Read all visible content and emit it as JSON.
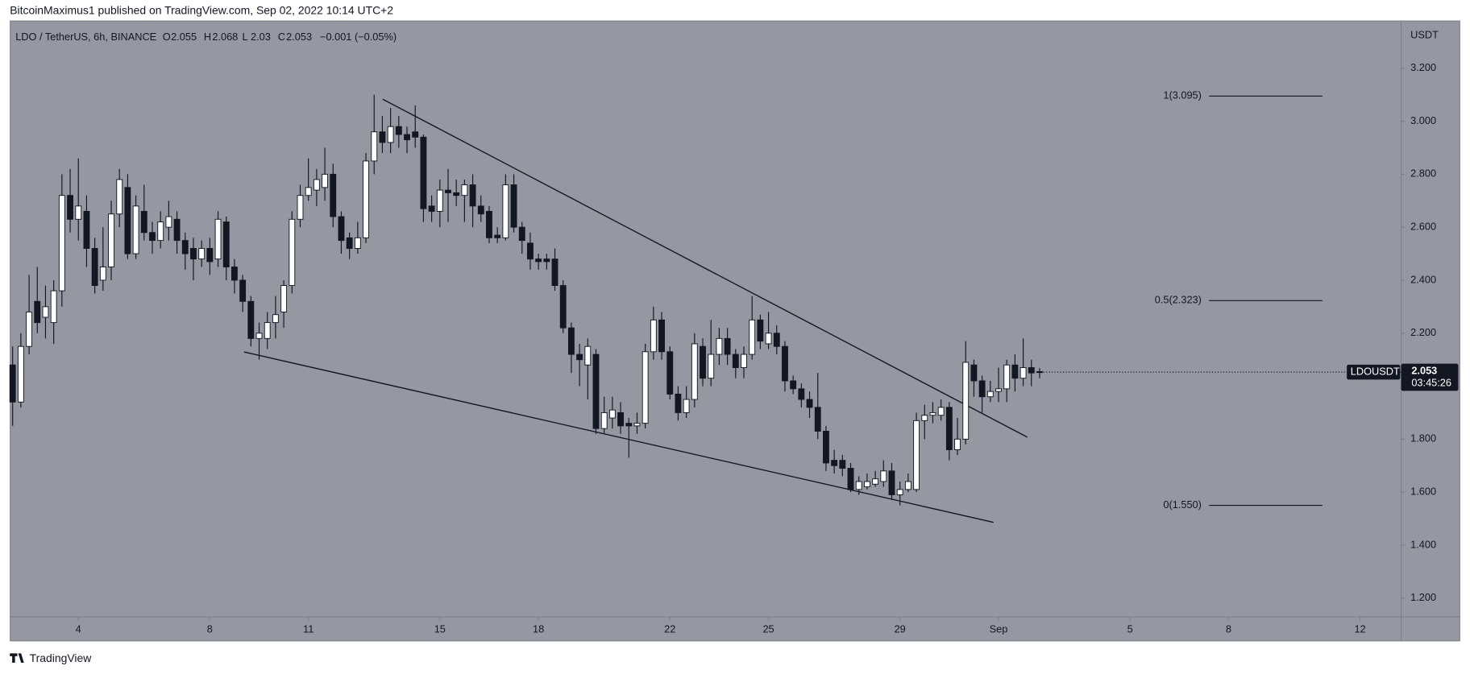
{
  "header": "BitcoinMaximus1 published on TradingView.com, Sep 02, 2022 10:14 UTC+2",
  "footer": "TradingView",
  "chart_data": {
    "type": "candlestick",
    "symbol": "LDO / TetherUS, 6h, BINANCE",
    "legend_fields": [
      "O",
      "H",
      "L",
      "C"
    ],
    "change_label": "−0.001 (−0.05%)",
    "axis_title": "USDT",
    "price_tag": {
      "name": "LDOUSDT",
      "countdown": "03:45:26"
    },
    "up_color": "#ffffff",
    "down_color": "#131722",
    "open": [
      2.08,
      1.94,
      2.15,
      2.32,
      2.26,
      2.24,
      2.36,
      2.72,
      2.63,
      2.66,
      2.52,
      2.4,
      2.45,
      2.65,
      2.75,
      2.5,
      2.66,
      2.58,
      2.55,
      2.6,
      2.63,
      2.55,
      2.52,
      2.48,
      2.52,
      2.48,
      2.62,
      2.45,
      2.4,
      2.32,
      2.18,
      2.18,
      2.24,
      2.28,
      2.38,
      2.63,
      2.72,
      2.74,
      2.75,
      2.8,
      2.64,
      2.56,
      2.52,
      2.56,
      2.85,
      2.96,
      2.92,
      2.98,
      2.95,
      2.96,
      2.94,
      2.68,
      2.66,
      2.74,
      2.73,
      2.72,
      2.76,
      2.68,
      2.66,
      2.57,
      2.56,
      2.76,
      2.6,
      2.54,
      2.48,
      2.48,
      2.48,
      2.38,
      2.22,
      2.12,
      2.08,
      2.12,
      1.84,
      1.88,
      1.9,
      1.86,
      1.85,
      1.86,
      2.13,
      2.25,
      2.13,
      1.97,
      1.9,
      1.95,
      2.15,
      2.03,
      2.12,
      2.18,
      2.12,
      2.07,
      2.12,
      2.25,
      2.16,
      2.2,
      2.15,
      2.02,
      1.99,
      1.95,
      1.92,
      1.83,
      1.72,
      1.72,
      1.69,
      1.61,
      1.62,
      1.63,
      1.64,
      1.68,
      1.59,
      1.61,
      1.61,
      1.87,
      1.89,
      1.89,
      1.92,
      1.76,
      1.8,
      2.08,
      2.02,
      1.96,
      1.98,
      1.99,
      2.08,
      2.03,
      2.07,
      2.055
    ],
    "high": [
      2.15,
      2.2,
      2.42,
      2.45,
      2.38,
      2.4,
      2.8,
      2.82,
      2.86,
      2.72,
      2.56,
      2.6,
      2.7,
      2.82,
      2.8,
      2.72,
      2.76,
      2.62,
      2.66,
      2.7,
      2.66,
      2.58,
      2.56,
      2.55,
      2.56,
      2.66,
      2.64,
      2.48,
      2.42,
      2.34,
      2.24,
      2.28,
      2.34,
      2.4,
      2.66,
      2.76,
      2.86,
      2.82,
      2.9,
      2.84,
      2.66,
      2.58,
      2.62,
      2.88,
      3.1,
      3.02,
      3.05,
      3.02,
      2.98,
      3.06,
      2.95,
      2.72,
      2.78,
      2.82,
      2.78,
      2.78,
      2.8,
      2.72,
      2.68,
      2.6,
      2.8,
      2.8,
      2.62,
      2.58,
      2.5,
      2.5,
      2.52,
      2.4,
      2.24,
      2.16,
      2.18,
      2.14,
      1.96,
      1.96,
      1.94,
      1.88,
      1.9,
      2.16,
      2.3,
      2.28,
      2.15,
      2.0,
      2.0,
      2.2,
      2.18,
      2.25,
      2.22,
      2.22,
      2.14,
      2.15,
      2.34,
      2.27,
      2.28,
      2.23,
      2.17,
      2.04,
      2.01,
      1.98,
      2.05,
      1.85,
      1.76,
      1.74,
      1.71,
      1.66,
      1.67,
      1.68,
      1.72,
      1.71,
      1.64,
      1.67,
      1.9,
      1.93,
      1.94,
      1.95,
      1.94,
      1.88,
      2.17,
      2.1,
      2.04,
      2.02,
      2.07,
      2.1,
      2.12,
      2.18,
      2.1,
      2.068
    ],
    "low": [
      1.85,
      1.92,
      2.12,
      2.2,
      2.18,
      2.16,
      2.3,
      2.58,
      2.55,
      2.45,
      2.35,
      2.36,
      2.4,
      2.6,
      2.48,
      2.48,
      2.55,
      2.5,
      2.52,
      2.55,
      2.5,
      2.44,
      2.4,
      2.45,
      2.42,
      2.45,
      2.4,
      2.35,
      2.28,
      2.15,
      2.1,
      2.14,
      2.18,
      2.22,
      2.35,
      2.6,
      2.7,
      2.68,
      2.7,
      2.6,
      2.5,
      2.48,
      2.5,
      2.54,
      2.8,
      2.88,
      2.88,
      2.9,
      2.88,
      2.9,
      2.62,
      2.62,
      2.6,
      2.62,
      2.68,
      2.62,
      2.6,
      2.62,
      2.54,
      2.54,
      2.55,
      2.58,
      2.5,
      2.44,
      2.44,
      2.44,
      2.36,
      2.2,
      2.05,
      2.0,
      1.95,
      1.82,
      1.82,
      1.84,
      1.82,
      1.73,
      1.82,
      1.84,
      2.1,
      2.1,
      1.95,
      1.87,
      1.88,
      1.92,
      2.0,
      2.0,
      2.08,
      2.08,
      2.03,
      2.03,
      2.1,
      2.14,
      2.14,
      2.12,
      1.98,
      1.97,
      1.92,
      1.88,
      1.8,
      1.68,
      1.67,
      1.66,
      1.6,
      1.59,
      1.61,
      1.62,
      1.62,
      1.57,
      1.55,
      1.6,
      1.6,
      1.8,
      1.86,
      1.87,
      1.72,
      1.74,
      1.78,
      1.96,
      1.9,
      1.94,
      1.94,
      1.94,
      1.98,
      2.0,
      2.0,
      2.03
    ],
    "close": [
      1.94,
      2.15,
      2.28,
      2.24,
      2.3,
      2.36,
      2.72,
      2.63,
      2.68,
      2.52,
      2.38,
      2.45,
      2.65,
      2.78,
      2.5,
      2.68,
      2.58,
      2.55,
      2.62,
      2.64,
      2.55,
      2.5,
      2.48,
      2.52,
      2.47,
      2.63,
      2.45,
      2.4,
      2.32,
      2.18,
      2.2,
      2.24,
      2.27,
      2.38,
      2.63,
      2.72,
      2.75,
      2.78,
      2.8,
      2.64,
      2.55,
      2.52,
      2.56,
      2.85,
      2.96,
      2.92,
      2.98,
      2.95,
      2.93,
      2.94,
      2.67,
      2.66,
      2.74,
      2.73,
      2.72,
      2.76,
      2.68,
      2.65,
      2.56,
      2.56,
      2.76,
      2.6,
      2.55,
      2.48,
      2.47,
      2.47,
      2.38,
      2.22,
      2.12,
      2.1,
      2.15,
      1.84,
      1.9,
      1.91,
      1.85,
      1.85,
      1.86,
      2.13,
      2.25,
      2.13,
      1.97,
      1.9,
      1.95,
      2.16,
      2.03,
      2.12,
      2.18,
      2.12,
      2.07,
      2.12,
      2.25,
      2.17,
      2.2,
      2.15,
      2.02,
      1.99,
      1.95,
      1.92,
      1.83,
      1.71,
      1.7,
      1.69,
      1.61,
      1.64,
      1.64,
      1.65,
      1.68,
      1.59,
      1.61,
      1.64,
      1.87,
      1.89,
      1.9,
      1.92,
      1.76,
      1.8,
      2.09,
      2.02,
      1.96,
      1.98,
      1.99,
      2.08,
      2.03,
      2.07,
      2.05,
      2.053
    ],
    "xlim": [
      -0.34,
      169.0
    ],
    "xticks": [
      {
        "value": 8,
        "label": "4"
      },
      {
        "value": 24,
        "label": "8"
      },
      {
        "value": 36,
        "label": "11"
      },
      {
        "value": 52,
        "label": "15"
      },
      {
        "value": 64,
        "label": "18"
      },
      {
        "value": 80,
        "label": "22"
      },
      {
        "value": 92,
        "label": "25"
      },
      {
        "value": 108,
        "label": "29"
      },
      {
        "value": 120,
        "label": "Sep"
      },
      {
        "value": 136,
        "label": "5"
      },
      {
        "value": 148,
        "label": "8"
      },
      {
        "value": 164,
        "label": "12"
      }
    ],
    "ylim": [
      1.129,
      3.38
    ],
    "yticks": [
      {
        "value": 3.2,
        "label": "3.200"
      },
      {
        "value": 3.0,
        "label": "3.000"
      },
      {
        "value": 2.8,
        "label": "2.800"
      },
      {
        "value": 2.6,
        "label": "2.600"
      },
      {
        "value": 2.4,
        "label": "2.400"
      },
      {
        "value": 2.2,
        "label": "2.200"
      },
      {
        "value": 2.0,
        "label": "2.000"
      },
      {
        "value": 1.8,
        "label": "1.800"
      },
      {
        "value": 1.6,
        "label": "1.600"
      },
      {
        "value": 1.4,
        "label": "1.400"
      },
      {
        "value": 1.2,
        "label": "1.200"
      }
    ],
    "fib_levels": [
      {
        "value": 3.095,
        "label": "1(3.095)"
      },
      {
        "value": 2.323,
        "label": "0.5(2.323)"
      },
      {
        "value": 1.55,
        "label": "0(1.550)"
      }
    ],
    "grid": false
  }
}
